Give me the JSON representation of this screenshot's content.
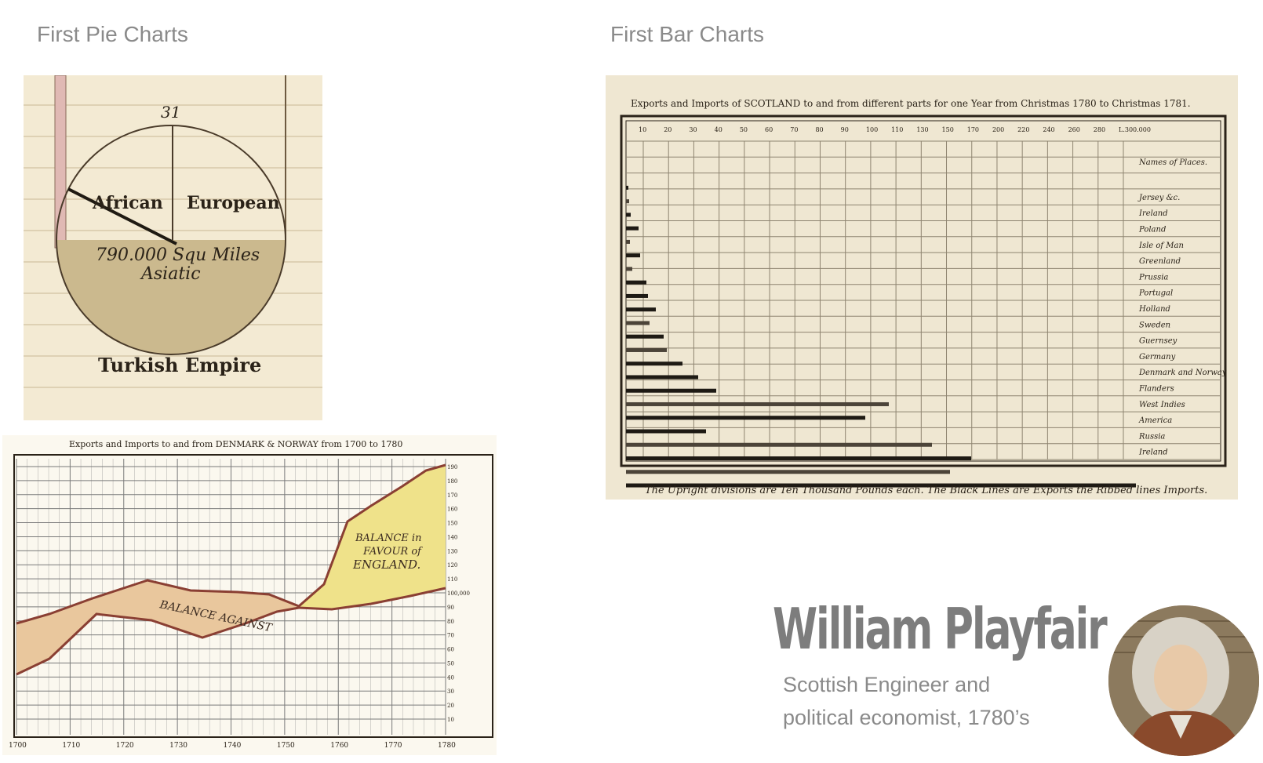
{
  "headings": {
    "pie": "First Pie Charts",
    "bar": "First Bar Charts"
  },
  "pie_chart": {
    "top_label": "31",
    "labels": [
      "African",
      "European",
      "790.000 Squ Miles",
      "Asiatic"
    ],
    "caption": "Turkish Empire"
  },
  "bar_chart": {
    "title": "Exports and Imports of SCOTLAND to and from different parts for one Year from Christmas 1780 to Christmas 1781.",
    "scale_labels": [
      "10",
      "20",
      "30",
      "40",
      "50",
      "60",
      "70",
      "80",
      "90",
      "100",
      "110",
      "130",
      "150",
      "170",
      "200",
      "220",
      "240",
      "260",
      "280",
      "L.300.000"
    ],
    "names_header": "Names of Places.",
    "places": [
      "Jersey &c.",
      "Ireland",
      "Poland",
      "Isle of Man",
      "Greenland",
      "Prussia",
      "Portugal",
      "Holland",
      "Sweden",
      "Guernsey",
      "Germany",
      "Denmark and Norway",
      "Flanders",
      "West Indies",
      "America",
      "Russia",
      "Ireland"
    ],
    "footer": "The Upright divisions are Ten Thousand Pounds each.   The Black Lines are Exports the Ribbed lines Imports."
  },
  "line_chart": {
    "title": "Exports and Imports to and from DENMARK & NORWAY from 1700 to 1780",
    "x_labels": [
      "1700",
      "1710",
      "1720",
      "1730",
      "1740",
      "1750",
      "1760",
      "1770",
      "1780"
    ],
    "y_labels": [
      "10",
      "20",
      "30",
      "40",
      "50",
      "60",
      "70",
      "80",
      "90",
      "100,000",
      "110",
      "120",
      "130",
      "140",
      "150",
      "160",
      "170",
      "180",
      "190"
    ],
    "annotations": {
      "against": "BALANCE AGAINST",
      "favour_line1": "BALANCE in",
      "favour_line2": "FAVOUR of",
      "favour_line3": "ENGLAND."
    },
    "colors": {
      "against": "#e9c79d",
      "favour": "#efe28a",
      "line": "#8a3f33"
    }
  },
  "person": {
    "name": "William Playfair",
    "description_line1": "Scottish Engineer and",
    "description_line2": "political economist, 1780’s"
  }
}
